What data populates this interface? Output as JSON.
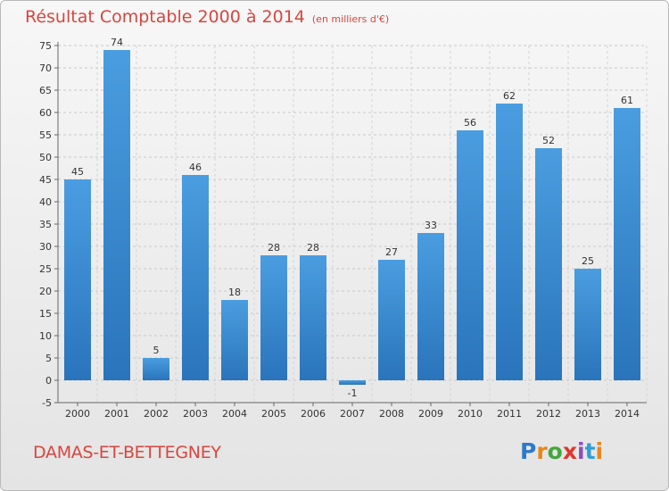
{
  "header": {
    "title": "Résultat Comptable 2000 à 2014",
    "subtitle": "(en milliers d'€)"
  },
  "footer": {
    "commune": "DAMAS-ET-BETTEGNEY",
    "logo_letters": [
      {
        "char": "P",
        "color": "#2f79c9"
      },
      {
        "char": "r",
        "color": "#e8861a"
      },
      {
        "char": "o",
        "color": "#44a63c"
      },
      {
        "char": "x",
        "color": "#e0362c"
      },
      {
        "char": "i",
        "color": "#8a4fbf"
      },
      {
        "char": "t",
        "color": "#2f9fd9"
      },
      {
        "char": "i",
        "color": "#e8861a"
      }
    ]
  },
  "chart_data": {
    "type": "bar",
    "categories": [
      "2000",
      "2001",
      "2002",
      "2003",
      "2004",
      "2005",
      "2006",
      "2007",
      "2008",
      "2009",
      "2010",
      "2011",
      "2012",
      "2013",
      "2014"
    ],
    "values": [
      45,
      74,
      5,
      46,
      18,
      28,
      28,
      -1,
      27,
      33,
      56,
      62,
      52,
      25,
      61
    ],
    "data_labels": [
      "45",
      "74",
      "5",
      "46",
      "18",
      "28",
      "28",
      "-1",
      "27",
      "33",
      "56",
      "62",
      "52",
      "25",
      "61"
    ],
    "ylim": [
      -5,
      75
    ],
    "yticks": [
      -5,
      0,
      5,
      10,
      15,
      20,
      25,
      30,
      35,
      40,
      45,
      50,
      55,
      60,
      65,
      70,
      75
    ],
    "grid": true,
    "bar_color": "#4a9de0",
    "bar_color_dark": "#2a74bb"
  }
}
